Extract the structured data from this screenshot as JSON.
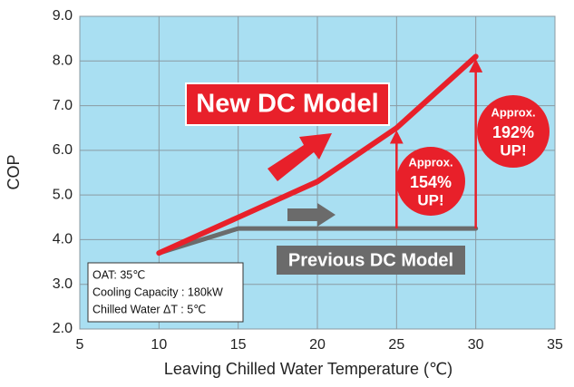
{
  "chart_data": {
    "type": "line",
    "xlabel": "Leaving Chilled Water Temperature (℃)",
    "ylabel": "COP",
    "x": [
      10,
      15,
      20,
      25,
      30
    ],
    "series": [
      {
        "name": "Previous DC Model",
        "color": "#6b6b6b",
        "values": [
          3.7,
          4.25,
          4.25,
          4.25,
          4.25
        ]
      },
      {
        "name": "New DC Model",
        "color": "#e8202a",
        "values": [
          3.7,
          4.5,
          5.3,
          6.5,
          8.1
        ]
      }
    ],
    "xlim": [
      5,
      35
    ],
    "xticks": [
      5,
      10,
      15,
      20,
      25,
      30,
      35
    ],
    "ylim": [
      2,
      9
    ],
    "yticks": [
      {
        "value": 2,
        "label": "2.0"
      },
      {
        "value": 3,
        "label": "3.0"
      },
      {
        "value": 4,
        "label": "4.0"
      },
      {
        "value": 5,
        "label": "5.0"
      },
      {
        "value": 6,
        "label": "6.0"
      },
      {
        "value": 7,
        "label": "7.0"
      },
      {
        "value": 8,
        "label": "8.0"
      },
      {
        "value": 9,
        "label": "9.0"
      }
    ],
    "grid": true,
    "background": "#a9dff2",
    "callouts": [
      {
        "lines": [
          "Approx.",
          "154%",
          "UP!"
        ]
      },
      {
        "lines": [
          "Approx.",
          "192%",
          "UP!"
        ]
      }
    ],
    "notes": [
      "OAT: 35℃",
      "Cooling Capacity : 180kW",
      "Chilled Water ΔT : 5℃"
    ]
  }
}
